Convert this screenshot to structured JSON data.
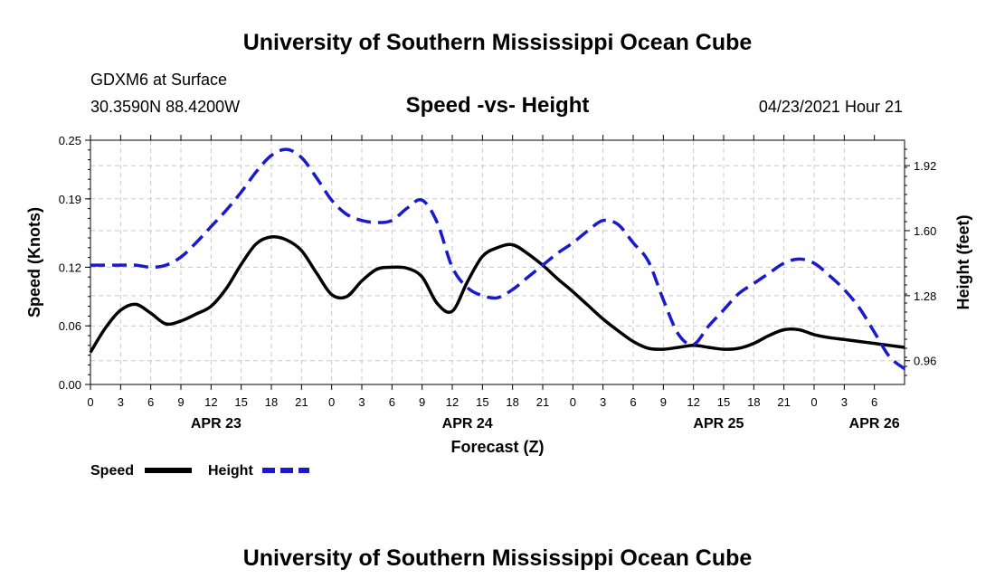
{
  "header": {
    "title": "University of Southern Mississippi Ocean Cube",
    "station": "GDXM6 at Surface",
    "coords": "30.3590N  88.4200W",
    "chart_title": "Speed -vs- Height",
    "timestamp": "04/23/2021 Hour 21"
  },
  "footer": {
    "title": "University of Southern Mississippi Ocean Cube"
  },
  "colors": {
    "speed": "#000000",
    "height": "#1a1acc",
    "grid": "#c8c8c8"
  },
  "chart_data": {
    "type": "line",
    "title": "Speed -vs- Height",
    "xlabel": "Forecast (Z)",
    "ylabel": "Speed (Knots)",
    "y2label": "Height (feet)",
    "xlim": [
      0,
      81
    ],
    "ylim": [
      0,
      0.25
    ],
    "y2lim": [
      0.843,
      2.045
    ],
    "yticks": [
      0,
      0.06,
      0.12,
      0.19,
      0.25
    ],
    "ytick_labels": [
      "0.00",
      "0.06",
      "0.12",
      "0.19",
      "0.25"
    ],
    "y2ticks": [
      0.96,
      1.28,
      1.6,
      1.92
    ],
    "y2tick_labels": [
      "0.96",
      "1.28",
      "1.60",
      "1.92"
    ],
    "x_tick_labels": [
      "0",
      "3",
      "6",
      "9",
      "12",
      "15",
      "18",
      "21",
      "0",
      "3",
      "6",
      "9",
      "12",
      "15",
      "18",
      "21",
      "0",
      "3",
      "6",
      "9",
      "12",
      "15",
      "18",
      "21",
      "0",
      "3",
      "6"
    ],
    "date_labels": [
      {
        "text": "APR 23",
        "hour": 12.5
      },
      {
        "text": "APR 24",
        "hour": 37.5
      },
      {
        "text": "APR 25",
        "hour": 62.5
      },
      {
        "text": "APR 26",
        "hour": 78
      }
    ],
    "grid": true,
    "series": [
      {
        "name": "Speed",
        "axis": "left",
        "style": "solid",
        "x": [
          0,
          1.5,
          3,
          4.5,
          6,
          7.5,
          9,
          10.5,
          12,
          13.5,
          15,
          16.5,
          18,
          19.5,
          21,
          22.5,
          24,
          25.5,
          27,
          28.5,
          30,
          31.5,
          33,
          34.5,
          36,
          37.5,
          39,
          40.5,
          42,
          43.5,
          45,
          46.5,
          48,
          49.5,
          51,
          52.5,
          54,
          55.5,
          57,
          58.5,
          60,
          61.5,
          63,
          64.5,
          66,
          67.5,
          69,
          70.5,
          72,
          73.5,
          75,
          76.5,
          78,
          79.5,
          81
        ],
        "values": [
          0.033,
          0.058,
          0.076,
          0.082,
          0.073,
          0.062,
          0.065,
          0.072,
          0.08,
          0.098,
          0.123,
          0.144,
          0.151,
          0.148,
          0.137,
          0.114,
          0.092,
          0.09,
          0.106,
          0.118,
          0.12,
          0.119,
          0.11,
          0.083,
          0.075,
          0.105,
          0.131,
          0.14,
          0.143,
          0.134,
          0.122,
          0.108,
          0.095,
          0.081,
          0.067,
          0.055,
          0.044,
          0.037,
          0.036,
          0.038,
          0.04,
          0.038,
          0.036,
          0.037,
          0.042,
          0.05,
          0.056,
          0.056,
          0.051,
          0.048,
          0.046,
          0.044,
          0.042,
          0.04,
          0.038
        ]
      },
      {
        "name": "Height",
        "axis": "right",
        "style": "dashed",
        "x": [
          0,
          1.5,
          3,
          4.5,
          6,
          7.5,
          9,
          10.5,
          12,
          13.5,
          15,
          16.5,
          18,
          19.5,
          21,
          22.5,
          24,
          25.5,
          27,
          28.5,
          30,
          31.5,
          33,
          34.5,
          36,
          37.5,
          39,
          40.5,
          42,
          43.5,
          45,
          46.5,
          48,
          49.5,
          51,
          52.5,
          54,
          55.5,
          57,
          58.5,
          60,
          61.5,
          63,
          64.5,
          66,
          67.5,
          69,
          70.5,
          72,
          73.5,
          75,
          76.5,
          78,
          79.5,
          81
        ],
        "values": [
          1.43,
          1.43,
          1.43,
          1.43,
          1.42,
          1.43,
          1.47,
          1.54,
          1.62,
          1.7,
          1.79,
          1.89,
          1.97,
          2.0,
          1.96,
          1.86,
          1.75,
          1.68,
          1.65,
          1.64,
          1.65,
          1.71,
          1.75,
          1.64,
          1.42,
          1.32,
          1.28,
          1.27,
          1.31,
          1.37,
          1.43,
          1.49,
          1.54,
          1.6,
          1.65,
          1.63,
          1.54,
          1.45,
          1.26,
          1.09,
          1.04,
          1.13,
          1.21,
          1.29,
          1.34,
          1.39,
          1.44,
          1.46,
          1.44,
          1.38,
          1.31,
          1.22,
          1.1,
          0.98,
          0.92
        ]
      }
    ],
    "legend": [
      {
        "label": "Speed",
        "series": "Speed"
      },
      {
        "label": "Height",
        "series": "Height"
      }
    ]
  }
}
